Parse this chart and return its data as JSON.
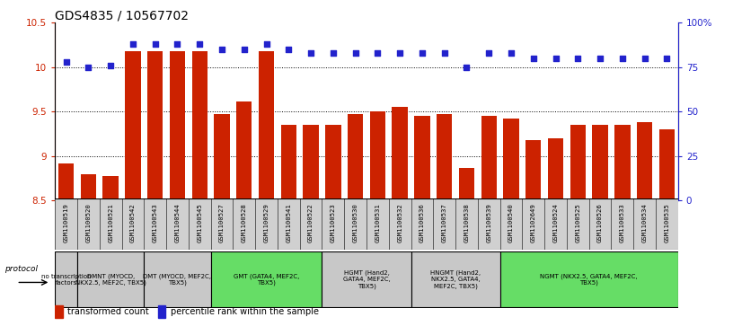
{
  "title": "GDS4835 / 10567702",
  "samples": [
    "GSM1100519",
    "GSM1100520",
    "GSM1100521",
    "GSM1100542",
    "GSM1100543",
    "GSM1100544",
    "GSM1100545",
    "GSM1100527",
    "GSM1100528",
    "GSM1100529",
    "GSM1100541",
    "GSM1100522",
    "GSM1100523",
    "GSM1100530",
    "GSM1100531",
    "GSM1100532",
    "GSM1100536",
    "GSM1100537",
    "GSM1100538",
    "GSM1100539",
    "GSM1100540",
    "GSM1102649",
    "GSM1100524",
    "GSM1100525",
    "GSM1100526",
    "GSM1100533",
    "GSM1100534",
    "GSM1100535"
  ],
  "bar_values": [
    8.92,
    8.8,
    8.78,
    10.18,
    10.18,
    10.18,
    10.18,
    9.47,
    9.61,
    10.18,
    9.35,
    9.35,
    9.35,
    9.47,
    9.5,
    9.55,
    9.45,
    9.47,
    8.87,
    9.45,
    9.42,
    9.18,
    9.2,
    9.35,
    9.35,
    9.35,
    9.38,
    9.3
  ],
  "percentile_values": [
    78,
    75,
    76,
    88,
    88,
    88,
    88,
    85,
    85,
    88,
    85,
    83,
    83,
    83,
    83,
    83,
    83,
    83,
    75,
    83,
    83,
    80,
    80,
    80,
    80,
    80,
    80,
    80
  ],
  "protocol_groups": [
    {
      "label": "no transcription\nfactors",
      "start": 0,
      "end": 1,
      "color": "#c8c8c8"
    },
    {
      "label": "DMNT (MYOCD,\nNKX2.5, MEF2C, TBX5)",
      "start": 1,
      "end": 4,
      "color": "#c8c8c8"
    },
    {
      "label": "DMT (MYOCD, MEF2C,\nTBX5)",
      "start": 4,
      "end": 7,
      "color": "#c8c8c8"
    },
    {
      "label": "GMT (GATA4, MEF2C,\nTBX5)",
      "start": 7,
      "end": 12,
      "color": "#66dd66"
    },
    {
      "label": "HGMT (Hand2,\nGATA4, MEF2C,\nTBX5)",
      "start": 12,
      "end": 16,
      "color": "#c8c8c8"
    },
    {
      "label": "HNGMT (Hand2,\nNKX2.5, GATA4,\nMEF2C, TBX5)",
      "start": 16,
      "end": 20,
      "color": "#c8c8c8"
    },
    {
      "label": "NGMT (NKX2.5, GATA4, MEF2C,\nTBX5)",
      "start": 20,
      "end": 28,
      "color": "#66dd66"
    }
  ],
  "ylim_left": [
    8.5,
    10.5
  ],
  "ylim_right": [
    0,
    100
  ],
  "bar_color": "#cc2200",
  "dot_color": "#2222cc",
  "background_color": "#ffffff",
  "title_fontsize": 10,
  "sample_box_color": "#d0d0d0"
}
